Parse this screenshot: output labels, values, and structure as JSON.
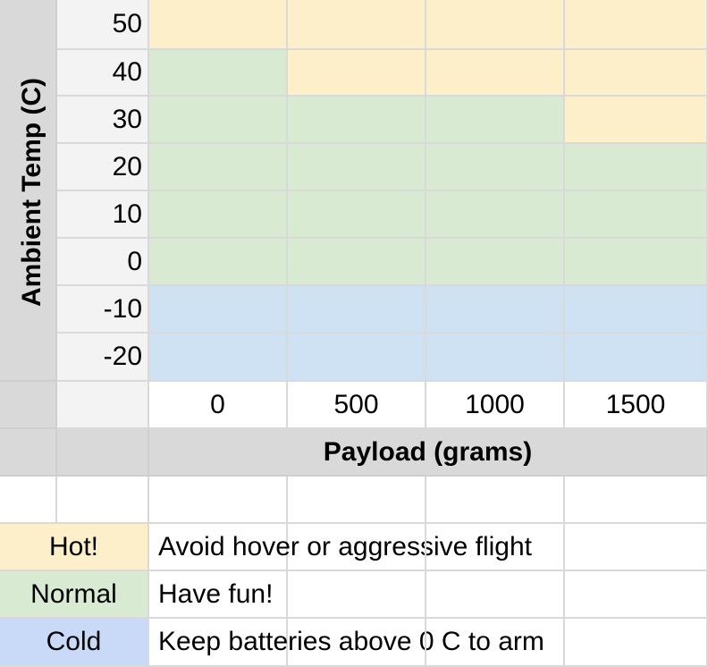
{
  "colors": {
    "hot": "#fcefc9",
    "normal": "#d9ead3",
    "cold": "#cfe2f3",
    "cold_legend": "#c9daf8"
  },
  "y_axis": {
    "label": "Ambient Temp (C)",
    "ticks": [
      "50",
      "40",
      "30",
      "20",
      "10",
      "0",
      "-10",
      "-20"
    ]
  },
  "x_axis": {
    "label": "Payload (grams)",
    "ticks": [
      "0",
      "500",
      "1000",
      "1500"
    ]
  },
  "grid": [
    [
      "hot",
      "hot",
      "hot",
      "hot"
    ],
    [
      "normal",
      "hot",
      "hot",
      "hot"
    ],
    [
      "normal",
      "normal",
      "normal",
      "hot"
    ],
    [
      "normal",
      "normal",
      "normal",
      "normal"
    ],
    [
      "normal",
      "normal",
      "normal",
      "normal"
    ],
    [
      "normal",
      "normal",
      "normal",
      "normal"
    ],
    [
      "cold",
      "cold",
      "cold",
      "cold"
    ],
    [
      "cold",
      "cold",
      "cold",
      "cold"
    ]
  ],
  "legend": [
    {
      "key": "hot",
      "label": "Hot!",
      "text": "Avoid hover or aggressive flight"
    },
    {
      "key": "normal",
      "label": "Normal",
      "text": "Have fun!"
    },
    {
      "key": "cold_legend",
      "label": "Cold",
      "text": "Keep batteries above 0 C to arm"
    }
  ]
}
